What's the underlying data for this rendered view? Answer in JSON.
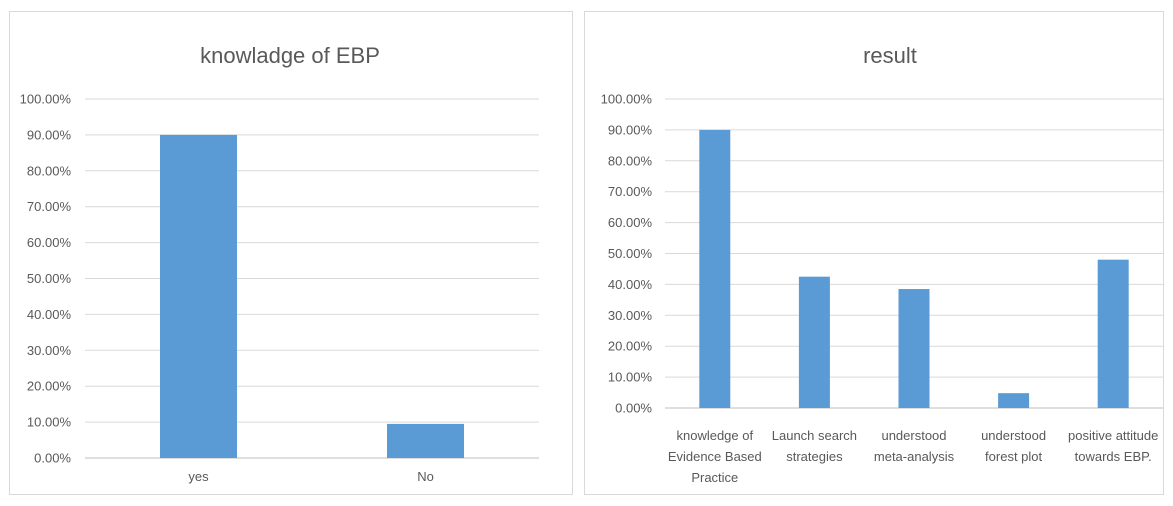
{
  "colors": {
    "bar": "#5b9bd5",
    "grid": "#d9d9d9",
    "text": "#595959"
  },
  "chart_data": [
    {
      "type": "bar",
      "title": "knowladge of EBP",
      "categories": [
        [
          "yes"
        ],
        [
          "No"
        ]
      ],
      "values": [
        90.0,
        9.5
      ],
      "ylim": [
        0,
        100
      ],
      "yticks": [
        "0.00%",
        "10.00%",
        "20.00%",
        "30.00%",
        "40.00%",
        "50.00%",
        "60.00%",
        "70.00%",
        "80.00%",
        "90.00%",
        "100.00%"
      ],
      "grid": true,
      "xlabel": "",
      "ylabel": ""
    },
    {
      "type": "bar",
      "title": "result",
      "categories": [
        [
          "knowledge of",
          "Evidence Based",
          "Practice"
        ],
        [
          "Launch search",
          "strategies"
        ],
        [
          "understood",
          "meta-analysis"
        ],
        [
          "understood",
          "forest plot"
        ],
        [
          "positive attitude",
          "towards  EBP."
        ]
      ],
      "values": [
        90.0,
        42.5,
        38.5,
        4.8,
        48.0
      ],
      "ylim": [
        0,
        100
      ],
      "yticks": [
        "0.00%",
        "10.00%",
        "20.00%",
        "30.00%",
        "40.00%",
        "50.00%",
        "60.00%",
        "70.00%",
        "80.00%",
        "90.00%",
        "100.00%"
      ],
      "grid": true,
      "xlabel": "",
      "ylabel": ""
    }
  ]
}
